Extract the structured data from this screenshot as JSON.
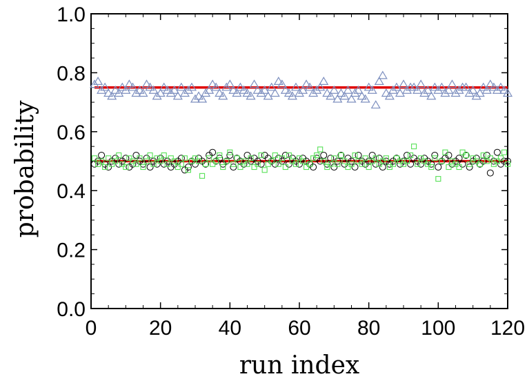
{
  "chart_data": {
    "type": "scatter",
    "title": "",
    "xlabel": "run index",
    "ylabel": "probability",
    "xlim": [
      0,
      120
    ],
    "ylim": [
      0.0,
      1.0
    ],
    "x_ticks": [
      0,
      20,
      40,
      60,
      80,
      100,
      120
    ],
    "x_tick_labels": [
      "0",
      "20",
      "40",
      "60",
      "80",
      "100",
      "120"
    ],
    "y_ticks": [
      0.0,
      0.2,
      0.4,
      0.6,
      0.8,
      1.0
    ],
    "y_tick_labels": [
      "0.0",
      "0.2",
      "0.4",
      "0.6",
      "0.8",
      "1.0"
    ],
    "grid": false,
    "legend": "none",
    "series": [
      {
        "marker": "triangle",
        "color": "#7d8fbf",
        "x": [
          1,
          2,
          3,
          4,
          5,
          6,
          7,
          8,
          9,
          10,
          11,
          12,
          13,
          14,
          15,
          16,
          17,
          18,
          19,
          20,
          21,
          22,
          23,
          24,
          25,
          26,
          27,
          28,
          29,
          30,
          31,
          32,
          33,
          34,
          35,
          36,
          37,
          38,
          39,
          40,
          41,
          42,
          43,
          44,
          45,
          46,
          47,
          48,
          49,
          50,
          51,
          52,
          53,
          54,
          55,
          56,
          57,
          58,
          59,
          60,
          61,
          62,
          63,
          64,
          65,
          66,
          67,
          68,
          69,
          70,
          71,
          72,
          73,
          74,
          75,
          76,
          77,
          78,
          79,
          80,
          81,
          82,
          83,
          84,
          85,
          86,
          87,
          88,
          89,
          90,
          91,
          92,
          93,
          94,
          95,
          96,
          97,
          98,
          99,
          100,
          101,
          102,
          103,
          104,
          105,
          106,
          107,
          108,
          109,
          110,
          111,
          112,
          113,
          114,
          115,
          116,
          117,
          118,
          119,
          120
        ],
        "values": [
          0.76,
          0.77,
          0.74,
          0.75,
          0.73,
          0.72,
          0.74,
          0.73,
          0.75,
          0.74,
          0.76,
          0.75,
          0.73,
          0.74,
          0.73,
          0.76,
          0.75,
          0.74,
          0.72,
          0.73,
          0.75,
          0.74,
          0.73,
          0.74,
          0.72,
          0.75,
          0.73,
          0.74,
          0.75,
          0.71,
          0.72,
          0.71,
          0.73,
          0.74,
          0.76,
          0.75,
          0.73,
          0.72,
          0.75,
          0.76,
          0.74,
          0.73,
          0.75,
          0.74,
          0.73,
          0.72,
          0.76,
          0.74,
          0.73,
          0.74,
          0.72,
          0.75,
          0.73,
          0.77,
          0.76,
          0.74,
          0.73,
          0.72,
          0.75,
          0.73,
          0.74,
          0.76,
          0.75,
          0.73,
          0.74,
          0.75,
          0.77,
          0.73,
          0.72,
          0.74,
          0.71,
          0.73,
          0.72,
          0.74,
          0.71,
          0.73,
          0.74,
          0.72,
          0.71,
          0.75,
          0.74,
          0.69,
          0.77,
          0.79,
          0.73,
          0.72,
          0.74,
          0.75,
          0.73,
          0.76,
          0.74,
          0.75,
          0.75,
          0.74,
          0.76,
          0.73,
          0.74,
          0.72,
          0.75,
          0.74,
          0.75,
          0.73,
          0.74,
          0.76,
          0.73,
          0.74,
          0.75,
          0.75,
          0.73,
          0.74,
          0.72,
          0.73,
          0.75,
          0.74,
          0.76,
          0.75,
          0.74,
          0.75,
          0.74,
          0.73
        ]
      },
      {
        "marker": "circle",
        "color": "#000000",
        "x": [
          1,
          2,
          3,
          4,
          5,
          6,
          7,
          8,
          9,
          10,
          11,
          12,
          13,
          14,
          15,
          16,
          17,
          18,
          19,
          20,
          21,
          22,
          23,
          24,
          25,
          26,
          27,
          28,
          29,
          30,
          31,
          32,
          33,
          34,
          35,
          36,
          37,
          38,
          39,
          40,
          41,
          42,
          43,
          44,
          45,
          46,
          47,
          48,
          49,
          50,
          51,
          52,
          53,
          54,
          55,
          56,
          57,
          58,
          59,
          60,
          61,
          62,
          63,
          64,
          65,
          66,
          67,
          68,
          69,
          70,
          71,
          72,
          73,
          74,
          75,
          76,
          77,
          78,
          79,
          80,
          81,
          82,
          83,
          84,
          85,
          86,
          87,
          88,
          89,
          90,
          91,
          92,
          93,
          94,
          95,
          96,
          97,
          98,
          99,
          100,
          101,
          102,
          103,
          104,
          105,
          106,
          107,
          108,
          109,
          110,
          111,
          112,
          113,
          114,
          115,
          116,
          117,
          118,
          119,
          120
        ],
        "values": [
          0.49,
          0.5,
          0.52,
          0.49,
          0.48,
          0.5,
          0.51,
          0.49,
          0.5,
          0.51,
          0.48,
          0.49,
          0.52,
          0.5,
          0.49,
          0.51,
          0.48,
          0.5,
          0.49,
          0.51,
          0.49,
          0.5,
          0.48,
          0.49,
          0.5,
          0.51,
          0.47,
          0.48,
          0.5,
          0.49,
          0.51,
          0.5,
          0.49,
          0.52,
          0.53,
          0.5,
          0.51,
          0.49,
          0.5,
          0.52,
          0.48,
          0.51,
          0.5,
          0.49,
          0.52,
          0.5,
          0.51,
          0.5,
          0.49,
          0.52,
          0.51,
          0.5,
          0.49,
          0.51,
          0.5,
          0.52,
          0.49,
          0.51,
          0.5,
          0.49,
          0.51,
          0.5,
          0.49,
          0.48,
          0.51,
          0.5,
          0.52,
          0.49,
          0.51,
          0.48,
          0.5,
          0.52,
          0.49,
          0.51,
          0.5,
          0.48,
          0.52,
          0.5,
          0.49,
          0.5,
          0.52,
          0.49,
          0.51,
          0.48,
          0.5,
          0.49,
          0.5,
          0.51,
          0.49,
          0.5,
          0.52,
          0.49,
          0.51,
          0.5,
          0.49,
          0.51,
          0.5,
          0.49,
          0.52,
          0.48,
          0.5,
          0.51,
          0.52,
          0.49,
          0.5,
          0.51,
          0.49,
          0.52,
          0.48,
          0.5,
          0.51,
          0.49,
          0.5,
          0.52,
          0.46,
          0.5,
          0.53,
          0.49,
          0.5,
          0.5
        ]
      },
      {
        "marker": "square",
        "color": "#55e055",
        "x": [
          1,
          2,
          3,
          4,
          5,
          6,
          7,
          8,
          9,
          10,
          11,
          12,
          13,
          14,
          15,
          16,
          17,
          18,
          19,
          20,
          21,
          22,
          23,
          24,
          25,
          26,
          27,
          28,
          29,
          30,
          31,
          32,
          33,
          34,
          35,
          36,
          37,
          38,
          39,
          40,
          41,
          42,
          43,
          44,
          45,
          46,
          47,
          48,
          49,
          50,
          51,
          52,
          53,
          54,
          55,
          56,
          57,
          58,
          59,
          60,
          61,
          62,
          63,
          64,
          65,
          66,
          67,
          68,
          69,
          70,
          71,
          72,
          73,
          74,
          75,
          76,
          77,
          78,
          79,
          80,
          81,
          82,
          83,
          84,
          85,
          86,
          87,
          88,
          89,
          90,
          91,
          92,
          93,
          94,
          95,
          96,
          97,
          98,
          99,
          100,
          101,
          102,
          103,
          104,
          105,
          106,
          107,
          108,
          109,
          110,
          111,
          112,
          113,
          114,
          115,
          116,
          117,
          118,
          119,
          120
        ],
        "values": [
          0.51,
          0.49,
          0.5,
          0.48,
          0.51,
          0.49,
          0.5,
          0.52,
          0.49,
          0.48,
          0.51,
          0.5,
          0.49,
          0.51,
          0.48,
          0.5,
          0.52,
          0.49,
          0.51,
          0.5,
          0.52,
          0.49,
          0.51,
          0.5,
          0.48,
          0.49,
          0.51,
          0.47,
          0.5,
          0.51,
          0.5,
          0.45,
          0.49,
          0.51,
          0.49,
          0.5,
          0.52,
          0.48,
          0.5,
          0.53,
          0.49,
          0.51,
          0.48,
          0.5,
          0.49,
          0.51,
          0.48,
          0.49,
          0.52,
          0.47,
          0.49,
          0.5,
          0.52,
          0.49,
          0.51,
          0.48,
          0.52,
          0.5,
          0.49,
          0.51,
          0.5,
          0.48,
          0.49,
          0.51,
          0.52,
          0.54,
          0.5,
          0.48,
          0.49,
          0.51,
          0.49,
          0.52,
          0.5,
          0.48,
          0.49,
          0.52,
          0.5,
          0.49,
          0.51,
          0.48,
          0.5,
          0.51,
          0.49,
          0.5,
          0.51,
          0.48,
          0.49,
          0.51,
          0.5,
          0.49,
          0.5,
          0.52,
          0.55,
          0.49,
          0.51,
          0.5,
          0.49,
          0.48,
          0.51,
          0.44,
          0.5,
          0.53,
          0.48,
          0.5,
          0.49,
          0.48,
          0.53,
          0.52,
          0.49,
          0.51,
          0.5,
          0.49,
          0.52,
          0.5,
          0.51,
          0.49,
          0.5,
          0.51,
          0.53,
          0.49
        ]
      }
    ],
    "reference_lines": [
      {
        "y": 0.75,
        "color": "#e00000"
      },
      {
        "y": 0.5,
        "color": "#e00000"
      }
    ]
  }
}
